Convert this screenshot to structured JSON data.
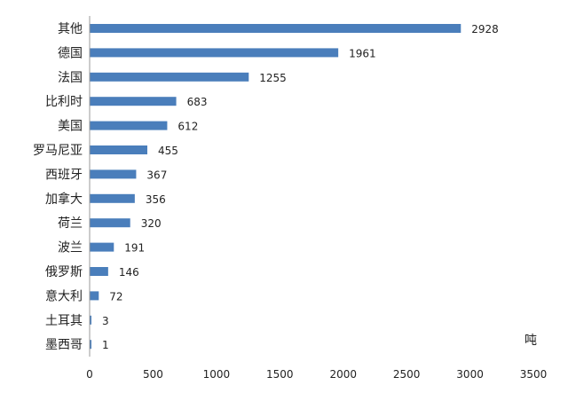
{
  "chart_data": {
    "type": "bar",
    "orientation": "horizontal",
    "categories": [
      "其他",
      "德国",
      "法国",
      "比利时",
      "美国",
      "罗马尼亚",
      "西班牙",
      "加拿大",
      "荷兰",
      "波兰",
      "俄罗斯",
      "意大利",
      "土耳其",
      "墨西哥"
    ],
    "values": [
      2928,
      1961,
      1255,
      683,
      612,
      455,
      367,
      356,
      320,
      191,
      146,
      72,
      3,
      1
    ],
    "xlim": [
      0,
      3500
    ],
    "xticks": [
      0,
      500,
      1000,
      1500,
      2000,
      2500,
      3000,
      3500
    ],
    "unit": "吨",
    "bar_color": "#4a7ebb",
    "grid": false
  }
}
